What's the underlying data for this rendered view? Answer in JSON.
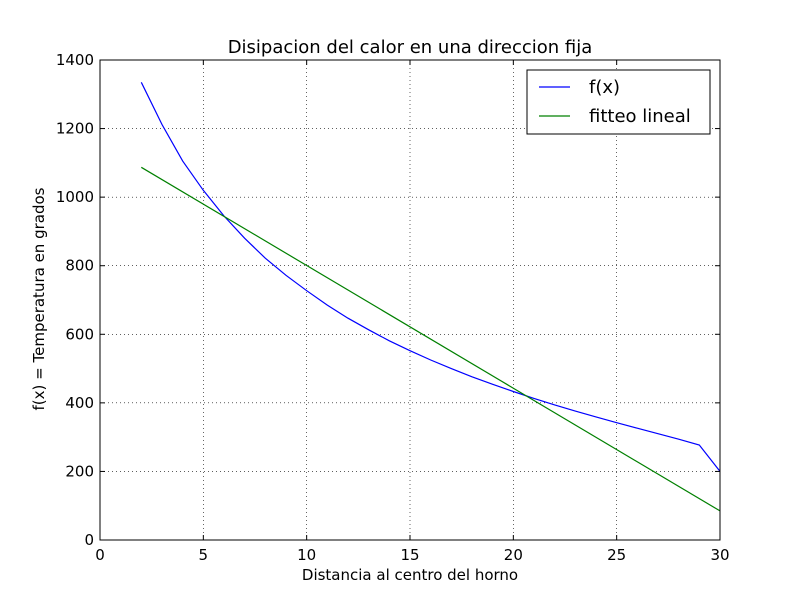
{
  "chart_data": {
    "type": "line",
    "title": "Disipacion del calor en una direccion fija",
    "xlabel": "Distancia al centro del horno",
    "ylabel": "f(x) = Temperatura en grados",
    "xlim": [
      0,
      30
    ],
    "ylim": [
      0,
      1400
    ],
    "xticks": [
      0,
      5,
      10,
      15,
      20,
      25,
      30
    ],
    "yticks": [
      0,
      200,
      400,
      600,
      800,
      1000,
      1200,
      1400
    ],
    "grid": true,
    "legend_position": "top-right",
    "series": [
      {
        "name": "f(x)",
        "color": "#0000ff",
        "x": [
          2,
          3,
          4,
          5,
          6,
          7,
          8,
          9,
          10,
          11,
          12,
          13,
          14,
          15,
          16,
          17,
          18,
          19,
          20,
          21,
          22,
          23,
          24,
          25,
          26,
          27,
          28,
          29,
          30
        ],
        "y": [
          1335,
          1212,
          1105,
          1020,
          945,
          880,
          822,
          772,
          727,
          685,
          647,
          613,
          581,
          552,
          525,
          500,
          476,
          454,
          433,
          413,
          394,
          376,
          359,
          342,
          326,
          310,
          294,
          277,
          200
        ]
      },
      {
        "name": "fitteo lineal",
        "color": "#008000",
        "x": [
          2,
          30
        ],
        "y": [
          1087,
          85
        ]
      }
    ]
  }
}
